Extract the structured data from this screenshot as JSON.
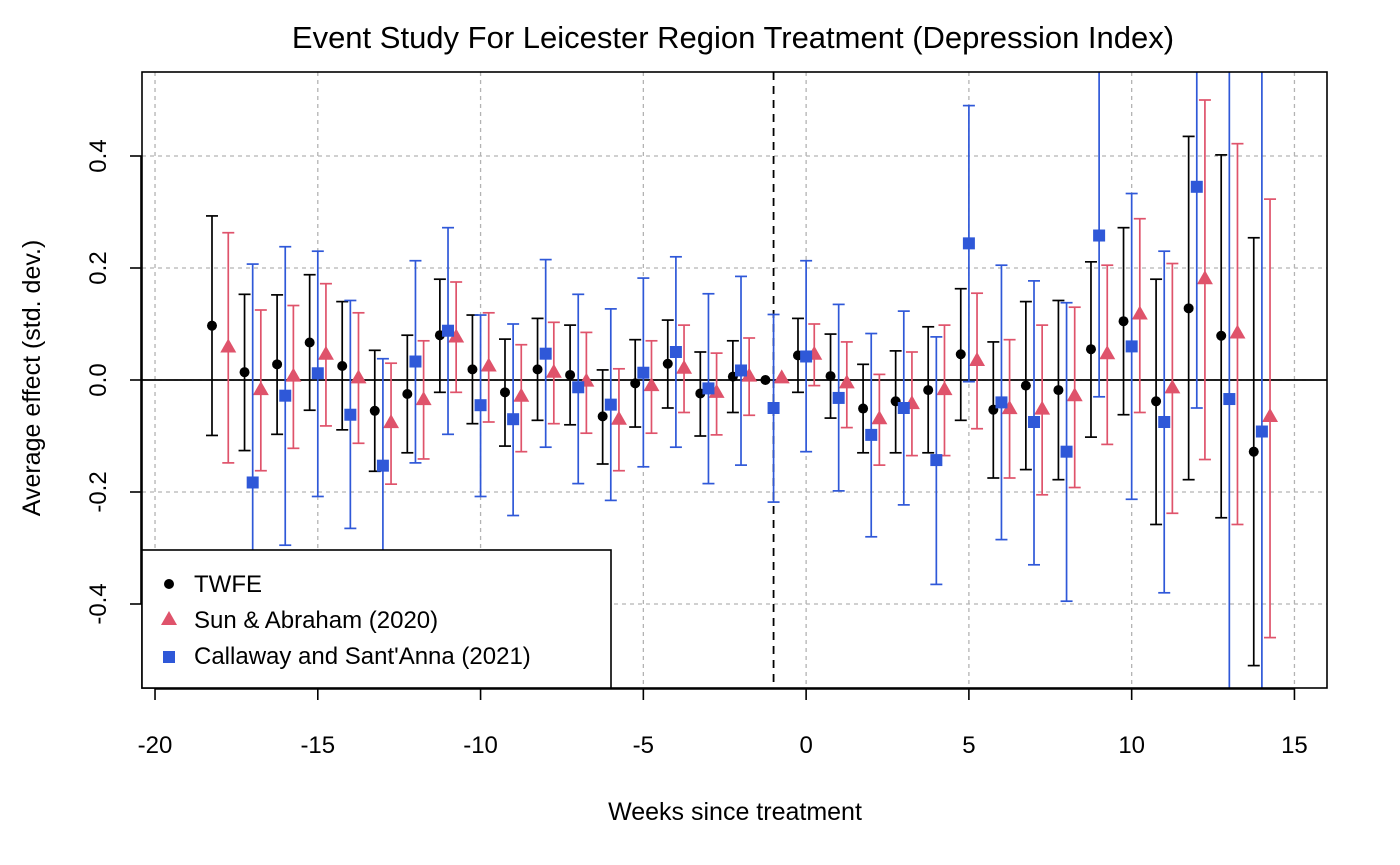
{
  "chart_data": {
    "type": "scatter",
    "title": "Event Study For Leicester Region Treatment (Depression Index)",
    "xlabel": "Weeks since treatment",
    "ylabel": "Average effect (std. dev.)",
    "xlim": [
      -20.4,
      16.0
    ],
    "ylim": [
      -0.55,
      0.55
    ],
    "x_ticks": [
      -20,
      -15,
      -10,
      -5,
      0,
      5,
      10,
      15
    ],
    "x_tick_labels": [
      "-20",
      "-15",
      "-10",
      "-5",
      "0",
      "5",
      "10",
      "15"
    ],
    "y_ticks": [
      -0.4,
      -0.2,
      0.0,
      0.2,
      0.4
    ],
    "y_tick_labels": [
      "-0.4",
      "-0.2",
      "0.0",
      "0.2",
      "0.4"
    ],
    "grid": true,
    "reference_lines": {
      "horizontal_y": 0,
      "vertical_dashed_x": -1
    },
    "legend_position": "bottom-left",
    "colors": {
      "twfe": "#000000",
      "sun_abraham": "#DF536B",
      "callaway": "#2F58D8",
      "grid": "#b3b3b3"
    },
    "series": [
      {
        "name": "TWFE",
        "marker": "circle",
        "x": [
          -18.25,
          -17.25,
          -16.25,
          -15.25,
          -14.25,
          -13.25,
          -12.25,
          -11.25,
          -10.25,
          -9.25,
          -8.25,
          -7.25,
          -6.25,
          -5.25,
          -4.25,
          -3.25,
          -2.25,
          -1.25,
          -0.25,
          0.75,
          1.75,
          2.75,
          3.75,
          4.75,
          5.75,
          6.75,
          7.75,
          8.75,
          9.75,
          10.75,
          11.75,
          12.75,
          13.75
        ],
        "y": [
          0.097,
          0.014,
          0.028,
          0.067,
          0.025,
          -0.055,
          -0.025,
          0.08,
          0.019,
          -0.022,
          0.019,
          0.009,
          -0.065,
          -0.006,
          0.029,
          -0.024,
          0.006,
          0.0,
          0.044,
          0.007,
          -0.051,
          -0.038,
          -0.018,
          0.046,
          -0.053,
          -0.01,
          -0.018,
          0.055,
          0.105,
          -0.038,
          0.128,
          0.079,
          -0.128
        ],
        "lower": [
          -0.099,
          -0.126,
          -0.097,
          -0.054,
          -0.089,
          -0.163,
          -0.13,
          -0.022,
          -0.078,
          -0.118,
          -0.072,
          -0.08,
          -0.15,
          -0.084,
          -0.05,
          -0.1,
          -0.058,
          0.0,
          -0.022,
          -0.068,
          -0.13,
          -0.13,
          -0.13,
          -0.072,
          -0.175,
          -0.16,
          -0.178,
          -0.102,
          -0.062,
          -0.258,
          -0.178,
          -0.246,
          -0.51
        ],
        "upper": [
          0.293,
          0.153,
          0.152,
          0.188,
          0.14,
          0.053,
          0.08,
          0.18,
          0.116,
          0.073,
          0.11,
          0.098,
          0.018,
          0.072,
          0.107,
          0.05,
          0.07,
          0.0,
          0.11,
          0.082,
          0.028,
          0.052,
          0.095,
          0.163,
          0.068,
          0.14,
          0.142,
          0.211,
          0.272,
          0.18,
          0.435,
          0.402,
          0.254
        ]
      },
      {
        "name": "Sun & Abraham (2020)",
        "marker": "triangle",
        "x": [
          -17.75,
          -16.75,
          -15.75,
          -14.75,
          -13.75,
          -12.75,
          -11.75,
          -10.75,
          -9.75,
          -8.75,
          -7.75,
          -6.75,
          -5.75,
          -4.75,
          -3.75,
          -2.75,
          -1.75,
          -0.75,
          0.25,
          1.25,
          2.25,
          3.25,
          4.25,
          5.25,
          6.25,
          7.25,
          8.25,
          9.25,
          10.25,
          11.25,
          12.25,
          13.25,
          14.25
        ],
        "y": [
          0.058,
          -0.018,
          0.006,
          0.045,
          0.003,
          -0.077,
          -0.036,
          0.076,
          0.024,
          -0.03,
          0.013,
          -0.003,
          -0.071,
          -0.011,
          0.02,
          -0.023,
          0.006,
          0.003,
          0.045,
          -0.006,
          -0.07,
          -0.043,
          -0.018,
          0.034,
          -0.052,
          -0.053,
          -0.029,
          0.046,
          0.117,
          -0.015,
          0.18,
          0.083,
          -0.066
        ],
        "lower": [
          -0.148,
          -0.162,
          -0.122,
          -0.082,
          -0.113,
          -0.186,
          -0.141,
          -0.022,
          -0.075,
          -0.128,
          -0.078,
          -0.095,
          -0.162,
          -0.095,
          -0.058,
          -0.098,
          -0.063,
          0.003,
          -0.01,
          -0.085,
          -0.152,
          -0.135,
          -0.135,
          -0.087,
          -0.175,
          -0.205,
          -0.192,
          -0.115,
          -0.058,
          -0.238,
          -0.142,
          -0.258,
          -0.46
        ],
        "upper": [
          0.263,
          0.125,
          0.133,
          0.172,
          0.12,
          0.03,
          0.07,
          0.175,
          0.12,
          0.063,
          0.103,
          0.085,
          0.02,
          0.07,
          0.098,
          0.048,
          0.075,
          0.003,
          0.1,
          0.068,
          0.01,
          0.05,
          0.098,
          0.155,
          0.072,
          0.098,
          0.13,
          0.205,
          0.288,
          0.208,
          0.5,
          0.422,
          0.323
        ]
      },
      {
        "name": "Callaway and Sant'Anna (2021)",
        "marker": "square",
        "x": [
          -17,
          -16,
          -15,
          -14,
          -13,
          -12,
          -11,
          -10,
          -9,
          -8,
          -7,
          -6,
          -5,
          -4,
          -3,
          -2,
          -1,
          0,
          1,
          2,
          3,
          4,
          5,
          6,
          7,
          8,
          9,
          10,
          11,
          12,
          13,
          14
        ],
        "y": [
          -0.183,
          -0.028,
          0.012,
          -0.062,
          -0.153,
          0.033,
          0.088,
          -0.045,
          -0.07,
          0.047,
          -0.013,
          -0.044,
          0.013,
          0.05,
          -0.015,
          0.017,
          -0.05,
          0.042,
          -0.032,
          -0.098,
          -0.05,
          -0.143,
          0.244,
          -0.04,
          -0.075,
          -0.128,
          0.258,
          0.06,
          -0.075,
          0.345,
          -0.034,
          -0.092
        ],
        "lower": [
          -0.62,
          -0.295,
          -0.208,
          -0.265,
          -0.35,
          -0.148,
          -0.097,
          -0.208,
          -0.242,
          -0.12,
          -0.185,
          -0.215,
          -0.155,
          -0.12,
          -0.185,
          -0.152,
          -0.218,
          -0.128,
          -0.198,
          -0.28,
          -0.223,
          -0.365,
          -0.003,
          -0.285,
          -0.33,
          -0.395,
          -0.03,
          -0.213,
          -0.38,
          -0.05,
          -0.65,
          -0.65
        ],
        "upper": [
          0.207,
          0.238,
          0.23,
          0.142,
          0.038,
          0.213,
          0.272,
          0.116,
          0.1,
          0.215,
          0.153,
          0.127,
          0.182,
          0.22,
          0.154,
          0.185,
          0.117,
          0.213,
          0.135,
          0.083,
          0.123,
          0.077,
          0.49,
          0.205,
          0.177,
          0.138,
          0.65,
          0.333,
          0.23,
          0.65,
          0.65,
          0.65
        ]
      }
    ]
  }
}
